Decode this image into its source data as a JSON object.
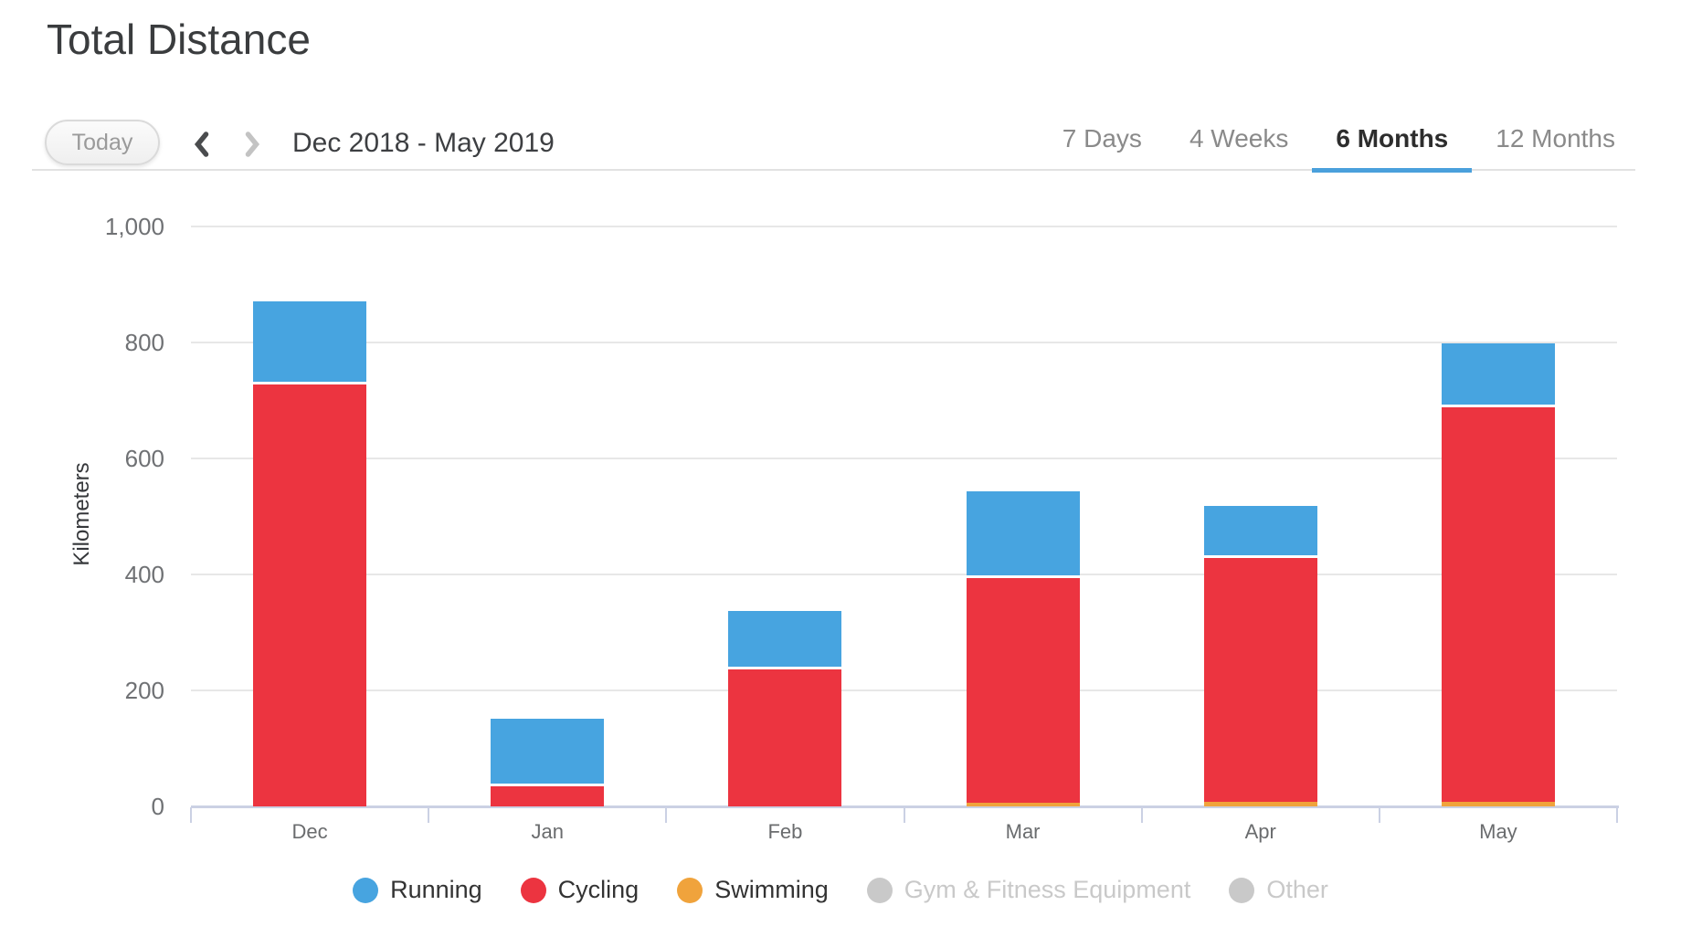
{
  "page": {
    "title": "Total Distance"
  },
  "toolbar": {
    "today_label": "Today",
    "date_range": "Dec 2018 - May 2019",
    "tabs": [
      {
        "label": "7 Days",
        "active": false
      },
      {
        "label": "4 Weeks",
        "active": false
      },
      {
        "label": "6 Months",
        "active": true
      },
      {
        "label": "12 Months",
        "active": false
      }
    ]
  },
  "chart_data": {
    "type": "bar",
    "stacked": true,
    "title": "Total Distance",
    "ylabel": "Kilometers",
    "ylim": [
      0,
      1000
    ],
    "ytick_labels": [
      "0",
      "200",
      "400",
      "600",
      "800",
      "1,000"
    ],
    "yticks": [
      0,
      200,
      400,
      600,
      800,
      1000
    ],
    "grid": true,
    "categories": [
      "Dec",
      "Jan",
      "Feb",
      "Mar",
      "Apr",
      "May"
    ],
    "series": [
      {
        "name": "Swimming",
        "color": "#f0a33c",
        "values": [
          0,
          0,
          0,
          6,
          8,
          8
        ]
      },
      {
        "name": "Cycling",
        "color": "#ec3440",
        "values": [
          727,
          34,
          236,
          388,
          421,
          681
        ]
      },
      {
        "name": "Running",
        "color": "#47a4e0",
        "values": [
          139,
          113,
          97,
          145,
          85,
          105
        ]
      }
    ],
    "legend_position": "bottom",
    "legend": [
      {
        "label": "Running",
        "color": "#47a4e0",
        "enabled": true
      },
      {
        "label": "Cycling",
        "color": "#ec3440",
        "enabled": true
      },
      {
        "label": "Swimming",
        "color": "#f0a33c",
        "enabled": true
      },
      {
        "label": "Gym & Fitness Equipment",
        "color": "#c9c9c9",
        "enabled": false
      },
      {
        "label": "Other",
        "color": "#c9c9c9",
        "enabled": false
      }
    ]
  }
}
